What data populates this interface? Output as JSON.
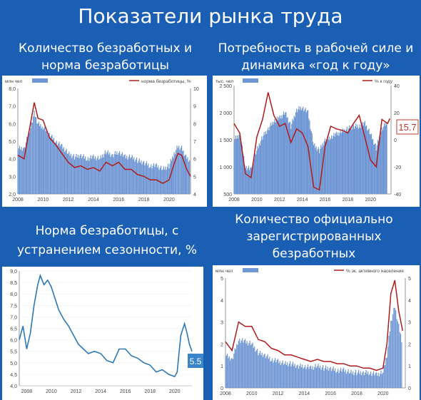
{
  "page": {
    "title": "Показатели рынка труда"
  },
  "panels": {
    "tl": {
      "title_line1": "Количество безработных и",
      "title_line2": "норма безработицы"
    },
    "tr": {
      "title_line1": "Потребность в рабочей силе и",
      "title_line2": "динамика «год к году»"
    },
    "bl": {
      "title_line1": "Норма безработицы, с",
      "title_line2": "устранением сезонности, %"
    },
    "br": {
      "title_line1": "Количество официально",
      "title_line2": "зарегистрированных",
      "title_line3": "безработных"
    }
  },
  "colors": {
    "bar": "#6f96d4",
    "line_red": "#b01c1c",
    "line_blue": "#2b78b8",
    "callout_red": "#c0392b",
    "callout_blue": "#3a84c9"
  },
  "chart_data": [
    {
      "id": "tl",
      "type": "bar",
      "title": "Количество безработных и норма безработицы",
      "legend": {
        "bar_label": "млн чел",
        "line_label": "норма безработицы, %"
      },
      "legend_placement": "top",
      "x_ticks": [
        "2008",
        "2010",
        "2012",
        "2014",
        "2016",
        "2018",
        "2020"
      ],
      "x_range": [
        2008,
        2021.7
      ],
      "y_left": {
        "ticks": [
          "2,0",
          "3,0",
          "4,0",
          "5,0",
          "6,0",
          "7,0",
          "8,0"
        ],
        "range": [
          2,
          8
        ]
      },
      "y_right": {
        "ticks": [
          "4",
          "5",
          "6",
          "7",
          "8",
          "9",
          "10"
        ],
        "range": [
          4,
          10
        ]
      },
      "bars_series": {
        "name": "млн чел",
        "x": [
          2008.0,
          2008.5,
          2009.0,
          2009.3,
          2009.6,
          2010.0,
          2010.5,
          2011.0,
          2011.5,
          2012.0,
          2012.5,
          2013.0,
          2013.5,
          2014.0,
          2014.5,
          2015.0,
          2015.5,
          2016.0,
          2016.5,
          2017.0,
          2017.5,
          2018.0,
          2018.5,
          2019.0,
          2019.5,
          2020.0,
          2020.4,
          2020.7,
          2021.0,
          2021.4,
          2021.7
        ],
        "y": [
          4.6,
          4.6,
          5.8,
          6.6,
          6.0,
          5.8,
          5.4,
          5.0,
          4.7,
          4.3,
          4.1,
          4.2,
          4.0,
          4.1,
          4.0,
          4.4,
          4.2,
          4.4,
          4.1,
          4.1,
          3.9,
          3.8,
          3.6,
          3.6,
          3.4,
          3.6,
          4.3,
          4.7,
          4.6,
          4.0,
          3.8
        ]
      },
      "line_series": {
        "name": "норма безработицы, %",
        "x": [
          2008.0,
          2008.5,
          2009.0,
          2009.3,
          2009.6,
          2010.0,
          2010.5,
          2011.0,
          2011.5,
          2012.0,
          2012.5,
          2013.0,
          2013.5,
          2014.0,
          2014.5,
          2015.0,
          2015.5,
          2016.0,
          2016.5,
          2017.0,
          2017.5,
          2018.0,
          2018.5,
          2019.0,
          2019.5,
          2020.0,
          2020.4,
          2020.7,
          2021.0,
          2021.4,
          2021.7
        ],
        "y": [
          6.2,
          6.0,
          8.0,
          9.2,
          8.3,
          8.2,
          7.2,
          6.8,
          6.3,
          5.8,
          5.5,
          5.6,
          5.4,
          5.5,
          5.3,
          5.8,
          5.6,
          5.8,
          5.4,
          5.4,
          5.1,
          5.0,
          4.8,
          4.8,
          4.6,
          4.8,
          5.7,
          6.3,
          6.2,
          5.4,
          5.0
        ]
      }
    },
    {
      "id": "tr",
      "type": "bar",
      "title": "Потребность в рабочей силе и динамика «год к году»",
      "legend": {
        "bar_label": "тыс. чел",
        "line_label": "% к году"
      },
      "legend_placement": "top",
      "x_ticks": [
        "2008",
        "2010",
        "2012",
        "2014",
        "2016",
        "2018",
        "2020"
      ],
      "x_range": [
        2008,
        2021.8
      ],
      "y_left": {
        "ticks": [
          "500",
          "1 000",
          "1 500",
          "2 000",
          "2 500"
        ],
        "range": [
          500,
          2500
        ]
      },
      "y_right": {
        "ticks": [
          "-40",
          "-20",
          "0",
          "20",
          "40"
        ],
        "range": [
          -40,
          40
        ]
      },
      "bars_series": {
        "name": "тыс. чел",
        "x": [
          2008.0,
          2008.5,
          2009.0,
          2009.5,
          2010.0,
          2010.5,
          2011.0,
          2011.5,
          2012.0,
          2012.5,
          2013.0,
          2013.5,
          2014.0,
          2014.5,
          2015.0,
          2015.5,
          2016.0,
          2016.5,
          2017.0,
          2017.5,
          2018.0,
          2018.5,
          2019.0,
          2019.5,
          2020.0,
          2020.5,
          2021.0,
          2021.5
        ],
        "y": [
          1500,
          1600,
          1000,
          950,
          1300,
          1550,
          1700,
          1850,
          1900,
          2000,
          1750,
          2050,
          2100,
          2000,
          1400,
          1300,
          1500,
          1550,
          1600,
          1650,
          1700,
          1750,
          1750,
          1800,
          1600,
          1350,
          1700,
          1850
        ]
      },
      "line_series": {
        "name": "% к году",
        "x": [
          2008.0,
          2008.5,
          2009.0,
          2009.5,
          2010.0,
          2010.5,
          2011.0,
          2011.5,
          2012.0,
          2012.5,
          2013.0,
          2013.5,
          2014.0,
          2014.5,
          2015.0,
          2015.5,
          2016.0,
          2016.5,
          2017.0,
          2017.5,
          2018.0,
          2018.5,
          2019.0,
          2019.5,
          2020.0,
          2020.5,
          2021.0,
          2021.5,
          2021.7
        ],
        "y": [
          12,
          5,
          -25,
          -28,
          2,
          15,
          35,
          18,
          10,
          12,
          -2,
          8,
          5,
          -5,
          -35,
          -37,
          -5,
          10,
          8,
          7,
          5,
          12,
          18,
          2,
          -15,
          -20,
          15,
          12,
          15.7
        ]
      },
      "callout": "15.7"
    },
    {
      "id": "bl",
      "type": "line",
      "title": "Норма безработицы, с устранением сезонности, %",
      "x_ticks": [
        "2008",
        "2010",
        "2012",
        "2014",
        "2016",
        "2018",
        "2020"
      ],
      "x_range": [
        2007.4,
        2021.4
      ],
      "y_left": {
        "ticks": [
          "4,0",
          "4,5",
          "5,0",
          "5,5",
          "6,0",
          "6,5",
          "7,0",
          "7,5",
          "8,0",
          "8,5",
          "9,0"
        ],
        "range": [
          4.0,
          9.0
        ]
      },
      "line_series": {
        "name": "",
        "x": [
          2007.4,
          2007.7,
          2008.0,
          2008.3,
          2008.6,
          2008.9,
          2009.1,
          2009.4,
          2009.7,
          2010.0,
          2010.3,
          2010.6,
          2011.0,
          2011.4,
          2011.8,
          2012.2,
          2012.6,
          2013.0,
          2013.5,
          2014.0,
          2014.5,
          2015.0,
          2015.5,
          2016.0,
          2016.5,
          2017.0,
          2017.5,
          2018.0,
          2018.5,
          2019.0,
          2019.5,
          2020.0,
          2020.2,
          2020.5,
          2020.8,
          2021.0,
          2021.2,
          2021.4
        ],
        "y": [
          6.0,
          6.6,
          5.6,
          6.3,
          7.5,
          8.4,
          8.8,
          8.4,
          8.6,
          8.3,
          7.8,
          7.3,
          6.9,
          6.6,
          6.2,
          5.8,
          5.6,
          5.4,
          5.5,
          5.4,
          5.1,
          5.0,
          5.6,
          5.6,
          5.3,
          5.2,
          5.0,
          4.9,
          4.6,
          4.7,
          4.5,
          4.4,
          4.6,
          6.2,
          6.7,
          6.3,
          5.8,
          5.5
        ]
      },
      "callout": "5.5"
    },
    {
      "id": "br",
      "type": "bar",
      "title": "Количество официально зарегистрированных безработных",
      "legend": {
        "bar_label": "млн чел",
        "line_label": "% эк. активного населения"
      },
      "legend_placement": "top",
      "x_ticks": [
        "2008",
        "2010",
        "2012",
        "2014",
        "2016",
        "2018",
        "2020"
      ],
      "x_range": [
        2008,
        2021.7
      ],
      "y_left": {
        "ticks": [
          "0",
          "1",
          "2",
          "3",
          "4",
          "5"
        ],
        "range": [
          0,
          5
        ]
      },
      "y_right": {
        "ticks": [
          "0",
          "1",
          "2",
          "3",
          "4",
          "5"
        ],
        "range": [
          0,
          5
        ]
      },
      "bars_series": {
        "name": "млн чел",
        "x": [
          2008.0,
          2008.5,
          2009.0,
          2009.5,
          2010.0,
          2010.5,
          2011.0,
          2011.5,
          2012.0,
          2012.5,
          2013.0,
          2013.5,
          2014.0,
          2014.5,
          2015.0,
          2015.5,
          2016.0,
          2016.5,
          2017.0,
          2017.5,
          2018.0,
          2018.5,
          2019.0,
          2019.5,
          2020.0,
          2020.3,
          2020.6,
          2020.9,
          2021.2,
          2021.5
        ],
        "y": [
          1.5,
          1.3,
          2.2,
          2.1,
          2.0,
          1.6,
          1.5,
          1.3,
          1.2,
          1.1,
          1.1,
          1.0,
          1.0,
          0.9,
          1.0,
          0.9,
          0.9,
          0.8,
          0.8,
          0.7,
          0.7,
          0.7,
          0.7,
          0.6,
          0.7,
          1.5,
          3.0,
          3.7,
          2.8,
          2.0
        ]
      },
      "line_series": {
        "name": "% эк. активного населения",
        "x": [
          2008.0,
          2008.5,
          2009.0,
          2009.5,
          2010.0,
          2010.5,
          2011.0,
          2011.5,
          2012.0,
          2012.5,
          2013.0,
          2013.5,
          2014.0,
          2014.5,
          2015.0,
          2015.5,
          2016.0,
          2016.5,
          2017.0,
          2017.5,
          2018.0,
          2018.5,
          2019.0,
          2019.5,
          2020.0,
          2020.3,
          2020.6,
          2020.9,
          2021.2,
          2021.5
        ],
        "y": [
          2.1,
          1.7,
          3.0,
          2.8,
          2.8,
          2.2,
          2.1,
          1.8,
          1.7,
          1.5,
          1.5,
          1.4,
          1.3,
          1.2,
          1.3,
          1.2,
          1.2,
          1.1,
          1.1,
          1.0,
          1.0,
          0.9,
          0.9,
          0.8,
          0.9,
          2.0,
          4.3,
          4.9,
          3.5,
          2.6
        ]
      }
    }
  ]
}
